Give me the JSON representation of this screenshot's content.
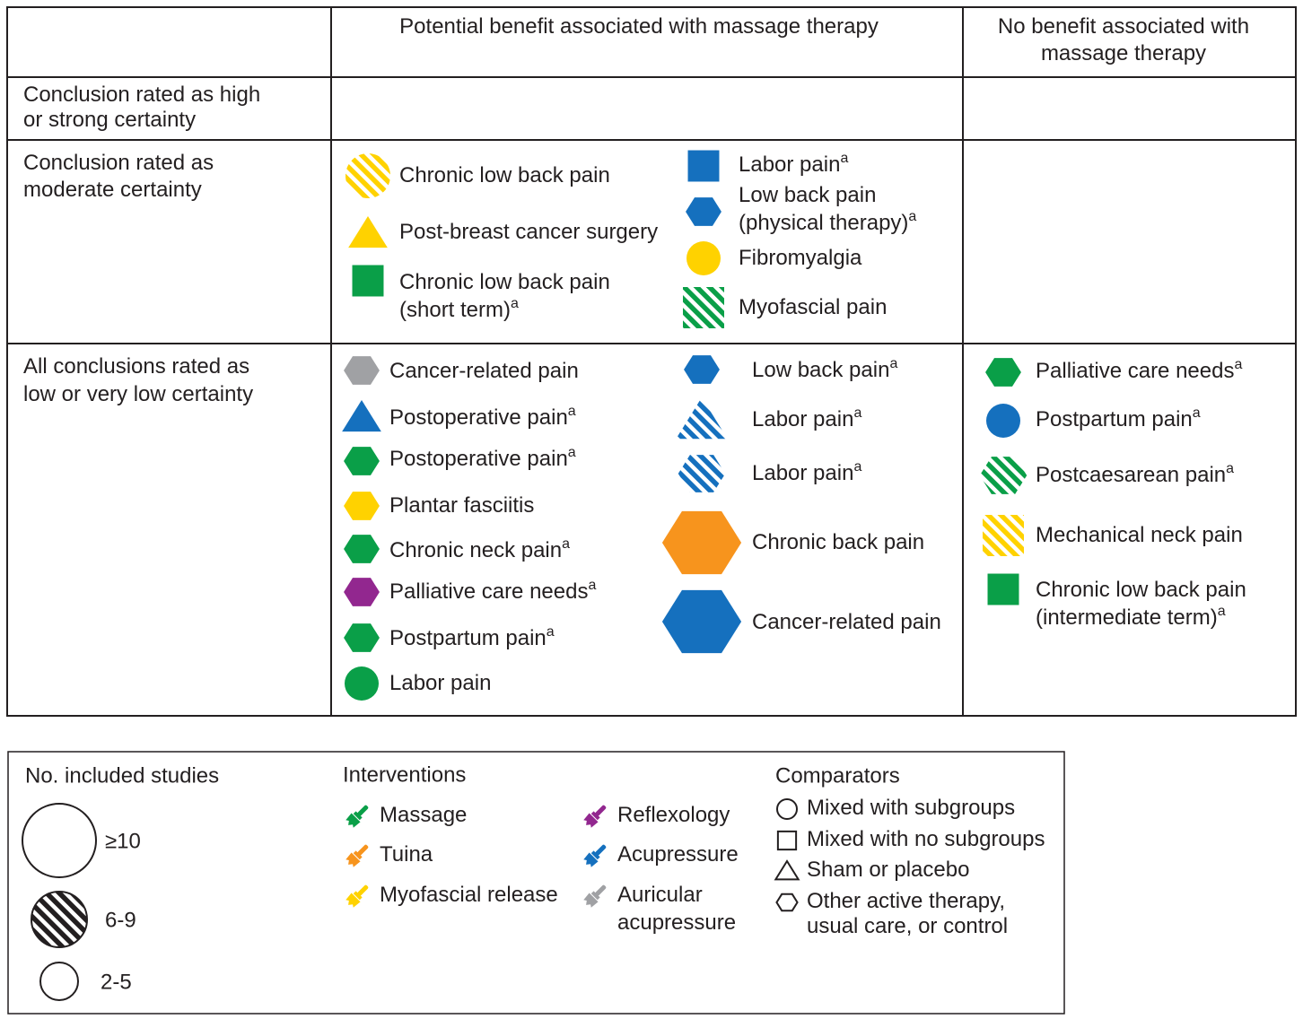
{
  "header": [
    [
      "Potential benefit associated with massage therapy"
    ],
    [
      "No benefit associated with",
      "massage therapy"
    ]
  ],
  "rows": [
    {
      "label": [
        "Conclusion rated as high",
        "or strong certainty"
      ]
    },
    {
      "label": [
        "Conclusion rated as",
        "moderate certainty"
      ],
      "benefit_left": [
        {
          "label": [
            "Chronic low back pain"
          ],
          "shape": "circle",
          "color": "#ffd200",
          "size": "medium",
          "striped": true
        },
        {
          "label": [
            "Post-breast cancer surgery"
          ],
          "shape": "triangle",
          "color": "#ffd200",
          "size": "small"
        },
        {
          "label": [
            "Chronic low back pain",
            "(short term)"
          ],
          "note": "a",
          "shape": "square",
          "color": "#0a9f48",
          "size": "small"
        }
      ],
      "benefit_right": [
        {
          "label": [
            "Labor pain"
          ],
          "note": "a",
          "shape": "square",
          "color": "#1570be",
          "size": "small"
        },
        {
          "label": [
            "Low back pain",
            "(physical therapy)"
          ],
          "note": "a",
          "shape": "hexagon",
          "color": "#1570be",
          "size": "small"
        },
        {
          "label": [
            "Fibromyalgia"
          ],
          "shape": "circle",
          "color": "#ffd200",
          "size": "small"
        },
        {
          "label": [
            "Myofascial pain"
          ],
          "shape": "square",
          "color": "#0a9f48",
          "size": "medium",
          "striped": true
        }
      ]
    },
    {
      "label": [
        "All conclusions rated as",
        "low or very low certainty"
      ],
      "benefit_left": [
        {
          "label": [
            "Cancer-related pain"
          ],
          "shape": "hexagon",
          "color": "#a0a1a4",
          "size": "small"
        },
        {
          "label": [
            "Postoperative pain"
          ],
          "note": "a",
          "shape": "triangle",
          "color": "#1570be",
          "size": "small"
        },
        {
          "label": [
            "Postoperative pain"
          ],
          "note": "a",
          "shape": "hexagon",
          "color": "#0a9f48",
          "size": "small"
        },
        {
          "label": [
            "Plantar fasciitis"
          ],
          "shape": "hexagon",
          "color": "#ffd200",
          "size": "small"
        },
        {
          "label": [
            "Chronic neck pain"
          ],
          "note": "a",
          "shape": "hexagon",
          "color": "#0a9f48",
          "size": "small"
        },
        {
          "label": [
            "Palliative care needs"
          ],
          "note": "a",
          "shape": "hexagon",
          "color": "#92278f",
          "size": "small"
        },
        {
          "label": [
            "Postpartum pain"
          ],
          "note": "a",
          "shape": "hexagon",
          "color": "#0a9f48",
          "size": "small"
        },
        {
          "label": [
            "Labor pain"
          ],
          "shape": "circle",
          "color": "#0a9f48",
          "size": "small"
        }
      ],
      "benefit_right": [
        {
          "label": [
            "Low back pain"
          ],
          "note": "a",
          "shape": "hexagon",
          "color": "#1570be",
          "size": "small"
        },
        {
          "label": [
            "Labor pain"
          ],
          "note": "a",
          "shape": "triangle",
          "color": "#1570be",
          "size": "medium",
          "striped": true
        },
        {
          "label": [
            "Labor pain"
          ],
          "note": "a",
          "shape": "hexagon",
          "color": "#1570be",
          "size": "medium",
          "striped": true
        },
        {
          "label": [
            "Chronic back pain"
          ],
          "shape": "hexagon",
          "color": "#f7941d",
          "size": "large"
        },
        {
          "label": [
            "Cancer-related pain"
          ],
          "shape": "hexagon",
          "color": "#1570be",
          "size": "large"
        }
      ],
      "no_benefit": [
        {
          "label": [
            "Palliative care needs"
          ],
          "note": "a",
          "shape": "hexagon",
          "color": "#0a9f48",
          "size": "small"
        },
        {
          "label": [
            "Postpartum pain"
          ],
          "note": "a",
          "shape": "circle",
          "color": "#1570be",
          "size": "small"
        },
        {
          "label": [
            "Postcaesarean pain"
          ],
          "note": "a",
          "shape": "hexagon",
          "color": "#0a9f48",
          "size": "medium",
          "striped": true
        },
        {
          "label": [
            "Mechanical neck pain"
          ],
          "shape": "square",
          "color": "#ffd200",
          "size": "medium",
          "striped": true
        },
        {
          "label": [
            "Chronic low back pain",
            "(intermediate term)"
          ],
          "note": "a",
          "shape": "square",
          "color": "#0a9f48",
          "size": "small"
        }
      ]
    }
  ],
  "legend": {
    "studies": {
      "title": "No. included studies",
      "levels": [
        {
          "label": "≥10",
          "size": "large"
        },
        {
          "label": "6-9",
          "size": "medium",
          "striped": true
        },
        {
          "label": "2-5",
          "size": "small"
        }
      ]
    },
    "interventions": {
      "title": "Interventions",
      "items": [
        {
          "label": [
            "Massage"
          ],
          "color": "#0a9f48"
        },
        {
          "label": [
            "Tuina"
          ],
          "color": "#f7941d"
        },
        {
          "label": [
            "Myofascial release"
          ],
          "color": "#ffd200"
        },
        {
          "label": [
            "Reflexology"
          ],
          "color": "#92278f"
        },
        {
          "label": [
            "Acupressure"
          ],
          "color": "#1570be"
        },
        {
          "label": [
            "Auricular",
            "acupressure"
          ],
          "color": "#a0a1a4"
        }
      ]
    },
    "comparators": {
      "title": "Comparators",
      "items": [
        {
          "label": [
            "Mixed with subgroups"
          ],
          "shape": "circle"
        },
        {
          "label": [
            "Mixed with no subgroups"
          ],
          "shape": "square"
        },
        {
          "label": [
            "Sham or placebo"
          ],
          "shape": "triangle"
        },
        {
          "label": [
            "Other active therapy,",
            "usual care, or control"
          ],
          "shape": "hexagon"
        }
      ]
    }
  }
}
